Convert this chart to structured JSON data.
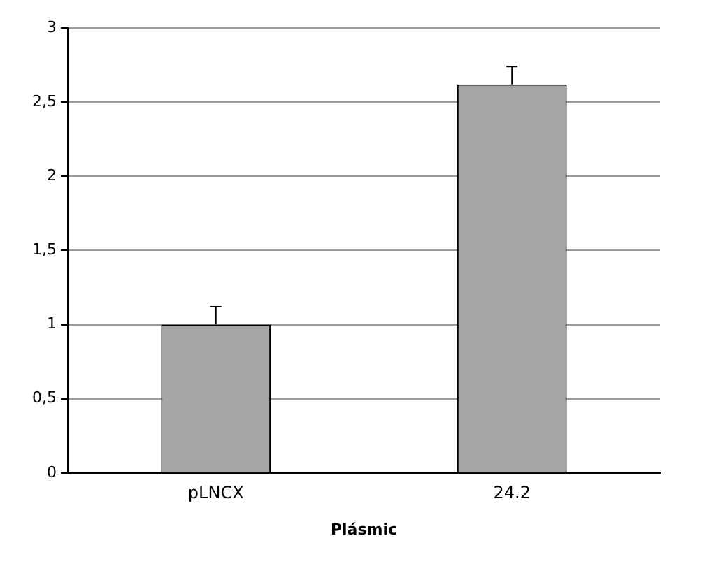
{
  "chart_data": {
    "type": "bar",
    "xlabel": "Plásmic",
    "categories": [
      "pLNCX",
      "24.2"
    ],
    "values": [
      1.0,
      2.62
    ],
    "errors": [
      [
        1.0,
        1.12
      ],
      [
        2.62,
        2.74
      ]
    ],
    "color": "#a6a6a6",
    "ylim": [
      0,
      3
    ],
    "yticks": [
      0,
      {
        "value": 0.5,
        "label": "0,5"
      },
      1,
      {
        "value": 1.5,
        "label": "1,5"
      },
      2,
      {
        "value": 2.5,
        "label": "2,5"
      },
      3
    ],
    "grid": "y",
    "legend": false
  }
}
